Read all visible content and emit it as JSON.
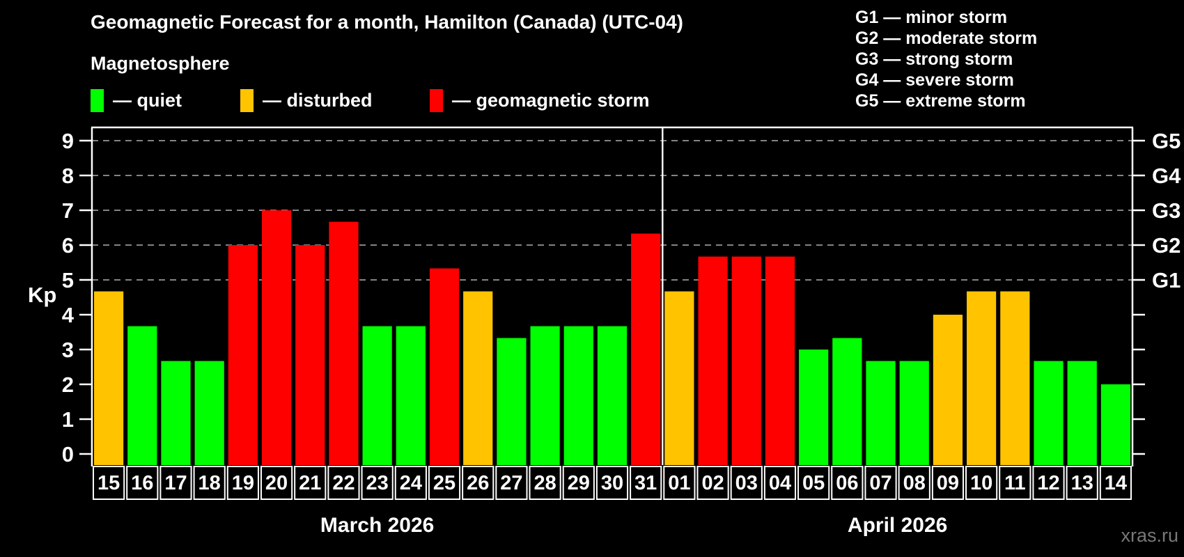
{
  "title": "Geomagnetic Forecast for a month, Hamilton (Canada) (UTC-04)",
  "subtitle": "Magnetosphere",
  "legend": {
    "quiet_label": "— quiet",
    "disturbed_label": "— disturbed",
    "storm_label": "— geomagnetic storm"
  },
  "g_legend": [
    "G1 — minor storm",
    "G2 — moderate storm",
    "G3 — strong storm",
    "G4 — severe storm",
    "G5 — extreme storm"
  ],
  "axis": {
    "y_label": "Kp",
    "y_ticks": [
      0,
      1,
      2,
      3,
      4,
      5,
      6,
      7,
      8,
      9
    ],
    "g_levels": [
      {
        "label": "G1",
        "value": 5
      },
      {
        "label": "G2",
        "value": 6
      },
      {
        "label": "G3",
        "value": 7
      },
      {
        "label": "G4",
        "value": 8
      },
      {
        "label": "G5",
        "value": 9
      }
    ]
  },
  "months": [
    {
      "label": "March 2026",
      "days": 17
    },
    {
      "label": "April 2026",
      "days": 14
    }
  ],
  "watermark": "xras.ru",
  "colors": {
    "background": "#000000",
    "quiet": "#00ff00",
    "disturbed": "#ffc300",
    "storm": "#ff0000",
    "grid": "#b0b0b0",
    "axis": "#ffffff",
    "watermark": "#787878"
  },
  "chart_data": {
    "type": "bar",
    "title": "Geomagnetic Forecast for a month, Hamilton (Canada) (UTC-04)",
    "xlabel": "",
    "ylabel": "Kp",
    "ylim": [
      0,
      9
    ],
    "grid": "dashed horizontal lines at Kp 5-9 (G1-G5)",
    "x": [
      "15",
      "16",
      "17",
      "18",
      "19",
      "20",
      "21",
      "22",
      "23",
      "24",
      "25",
      "26",
      "27",
      "28",
      "29",
      "30",
      "31",
      "01",
      "02",
      "03",
      "04",
      "05",
      "06",
      "07",
      "08",
      "09",
      "10",
      "11",
      "12",
      "13",
      "14"
    ],
    "values": [
      4.67,
      3.67,
      2.67,
      2.67,
      6.0,
      7.0,
      6.0,
      6.67,
      3.67,
      3.67,
      5.33,
      4.67,
      3.33,
      3.67,
      3.67,
      3.67,
      6.33,
      4.67,
      5.67,
      5.67,
      5.67,
      3.0,
      3.33,
      2.67,
      2.67,
      4.0,
      4.67,
      4.67,
      2.67,
      2.67,
      2.0
    ],
    "status": [
      "disturbed",
      "quiet",
      "quiet",
      "quiet",
      "storm",
      "storm",
      "storm",
      "storm",
      "quiet",
      "quiet",
      "storm",
      "disturbed",
      "quiet",
      "quiet",
      "quiet",
      "quiet",
      "storm",
      "disturbed",
      "storm",
      "storm",
      "storm",
      "quiet",
      "quiet",
      "quiet",
      "quiet",
      "disturbed",
      "disturbed",
      "disturbed",
      "quiet",
      "quiet",
      "quiet"
    ]
  }
}
